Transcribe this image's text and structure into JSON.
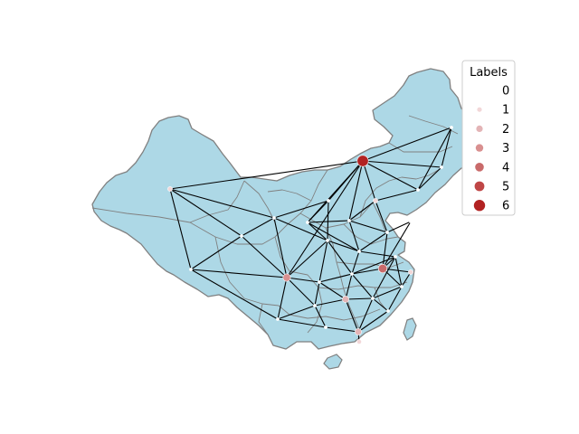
{
  "legend": {
    "title": "Labels",
    "entries": [
      {
        "label": "0",
        "color": "#ffffff"
      },
      {
        "label": "1",
        "color": "#f2d7d8"
      },
      {
        "label": "2",
        "color": "#e3b4b6"
      },
      {
        "label": "3",
        "color": "#d99090"
      },
      {
        "label": "4",
        "color": "#c96a6a"
      },
      {
        "label": "5",
        "color": "#bf4646"
      },
      {
        "label": "6",
        "color": "#b22222"
      }
    ]
  },
  "colors": {
    "land": "#add8e6",
    "border": "#808080",
    "edge": "#000000"
  },
  "map_data": {
    "region": "China",
    "nodes": [
      {
        "id": "beijing",
        "label": 6
      },
      {
        "id": "harbin",
        "label": 0
      },
      {
        "id": "changchun",
        "label": 0
      },
      {
        "id": "shenyang",
        "label": 0
      },
      {
        "id": "tianjin",
        "label": 1
      },
      {
        "id": "shijiazhuang",
        "label": 0
      },
      {
        "id": "taiyuan",
        "label": 0
      },
      {
        "id": "jinan",
        "label": 0
      },
      {
        "id": "qingdao",
        "label": 0
      },
      {
        "id": "urumqi",
        "label": 1
      },
      {
        "id": "lhasa",
        "label": 0
      },
      {
        "id": "xining",
        "label": 0
      },
      {
        "id": "lanzhou",
        "label": 0
      },
      {
        "id": "yinchuan",
        "label": 0
      },
      {
        "id": "xian",
        "label": 0
      },
      {
        "id": "zhengzhou",
        "label": 0
      },
      {
        "id": "chengdu",
        "label": 3
      },
      {
        "id": "chongqing",
        "label": 0
      },
      {
        "id": "wuhan",
        "label": 0
      },
      {
        "id": "nanjing",
        "label": 4
      },
      {
        "id": "hefei",
        "label": 0
      },
      {
        "id": "shanghai",
        "label": 1
      },
      {
        "id": "hangzhou",
        "label": 0
      },
      {
        "id": "changsha",
        "label": 2
      },
      {
        "id": "nanchang",
        "label": 0
      },
      {
        "id": "fuzhou",
        "label": 0
      },
      {
        "id": "guiyang",
        "label": 0
      },
      {
        "id": "kunming",
        "label": 0
      },
      {
        "id": "nanning",
        "label": 0
      },
      {
        "id": "guangzhou",
        "label": 2
      },
      {
        "id": "hongkong",
        "label": 1
      }
    ],
    "edges": [
      [
        "beijing",
        "harbin"
      ],
      [
        "beijing",
        "changchun"
      ],
      [
        "beijing",
        "shenyang"
      ],
      [
        "beijing",
        "tianjin"
      ],
      [
        "beijing",
        "shijiazhuang"
      ],
      [
        "beijing",
        "taiyuan"
      ],
      [
        "beijing",
        "yinchuan"
      ],
      [
        "beijing",
        "chengdu"
      ],
      [
        "beijing",
        "urumqi"
      ],
      [
        "harbin",
        "changchun"
      ],
      [
        "harbin",
        "shenyang"
      ],
      [
        "changchun",
        "shenyang"
      ],
      [
        "shenyang",
        "tianjin"
      ],
      [
        "tianjin",
        "jinan"
      ],
      [
        "tianjin",
        "shijiazhuang"
      ],
      [
        "shijiazhuang",
        "taiyuan"
      ],
      [
        "shijiazhuang",
        "jinan"
      ],
      [
        "taiyuan",
        "xian"
      ],
      [
        "taiyuan",
        "yinchuan"
      ],
      [
        "jinan",
        "qingdao"
      ],
      [
        "jinan",
        "zhengzhou"
      ],
      [
        "jinan",
        "nanjing"
      ],
      [
        "qingdao",
        "nanjing"
      ],
      [
        "urumqi",
        "xining"
      ],
      [
        "urumqi",
        "lhasa"
      ],
      [
        "urumqi",
        "lanzhou"
      ],
      [
        "lhasa",
        "chengdu"
      ],
      [
        "lhasa",
        "kunming"
      ],
      [
        "lhasa",
        "xining"
      ],
      [
        "xining",
        "lanzhou"
      ],
      [
        "xining",
        "chengdu"
      ],
      [
        "lanzhou",
        "yinchuan"
      ],
      [
        "lanzhou",
        "xian"
      ],
      [
        "lanzhou",
        "chengdu"
      ],
      [
        "yinchuan",
        "xian"
      ],
      [
        "xian",
        "zhengzhou"
      ],
      [
        "xian",
        "chengdu"
      ],
      [
        "xian",
        "wuhan"
      ],
      [
        "xian",
        "chongqing"
      ],
      [
        "zhengzhou",
        "wuhan"
      ],
      [
        "zhengzhou",
        "hefei"
      ],
      [
        "zhengzhou",
        "taiyuan"
      ],
      [
        "chengdu",
        "chongqing"
      ],
      [
        "chengdu",
        "kunming"
      ],
      [
        "chengdu",
        "guiyang"
      ],
      [
        "chongqing",
        "wuhan"
      ],
      [
        "chongqing",
        "guiyang"
      ],
      [
        "chongqing",
        "changsha"
      ],
      [
        "wuhan",
        "hefei"
      ],
      [
        "wuhan",
        "changsha"
      ],
      [
        "wuhan",
        "nanchang"
      ],
      [
        "wuhan",
        "nanjing"
      ],
      [
        "nanjing",
        "hefei"
      ],
      [
        "nanjing",
        "shanghai"
      ],
      [
        "nanjing",
        "hangzhou"
      ],
      [
        "hefei",
        "hangzhou"
      ],
      [
        "hefei",
        "nanchang"
      ],
      [
        "shanghai",
        "hangzhou"
      ],
      [
        "hangzhou",
        "nanchang"
      ],
      [
        "hangzhou",
        "fuzhou"
      ],
      [
        "nanchang",
        "changsha"
      ],
      [
        "nanchang",
        "fuzhou"
      ],
      [
        "nanchang",
        "guangzhou"
      ],
      [
        "changsha",
        "guiyang"
      ],
      [
        "changsha",
        "guangzhou"
      ],
      [
        "guiyang",
        "kunming"
      ],
      [
        "guiyang",
        "nanning"
      ],
      [
        "kunming",
        "nanning"
      ],
      [
        "nanning",
        "guangzhou"
      ],
      [
        "guangzhou",
        "fuzhou"
      ],
      [
        "guangzhou",
        "hongkong"
      ],
      [
        "shijiazhuang",
        "zhengzhou"
      ]
    ]
  }
}
